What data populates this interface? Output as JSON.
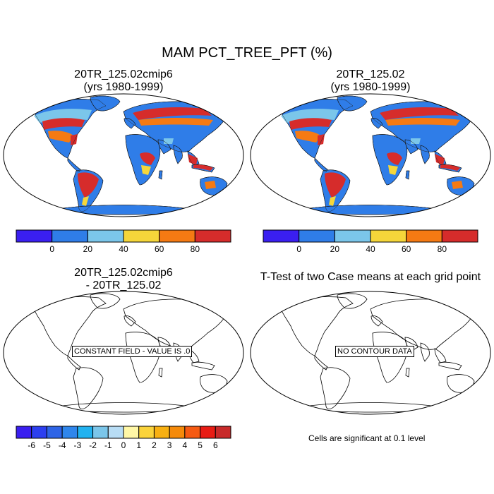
{
  "title": "MAM PCT_TREE_PFT (%)",
  "panels": {
    "top_left": {
      "title_line1": "20TR_125.02cmip6",
      "title_line2": "(yrs 1980-1999)"
    },
    "top_right": {
      "title_line1": "20TR_125.02",
      "title_line2": "(yrs 1980-1999)"
    },
    "bottom_left": {
      "title_line1": "20TR_125.02cmip6",
      "title_line2": "- 20TR_125.02",
      "label": "CONSTANT FIELD - VALUE IS .0"
    },
    "bottom_right": {
      "title_line1": "T-Test of two Case means at each grid point",
      "label": "NO CONTOUR DATA"
    }
  },
  "colorbar_pct": {
    "ticks": [
      "0",
      "20",
      "40",
      "60",
      "80"
    ],
    "colors": [
      "#3a1ff0",
      "#2f7de8",
      "#7bc6ea",
      "#f5d63a",
      "#f57a13",
      "#d62c2b"
    ]
  },
  "colorbar_diff": {
    "ticks": [
      "-6",
      "-5",
      "-4",
      "-3",
      "-2",
      "-1",
      "0",
      "1",
      "2",
      "3",
      "4",
      "5",
      "6"
    ],
    "colors": [
      "#3a1ff0",
      "#2c3ff0",
      "#2e64e6",
      "#2f86ec",
      "#22b2f0",
      "#7bc6ea",
      "#b8ddf5",
      "#fff7a6",
      "#fad33b",
      "#f8b012",
      "#f58a0a",
      "#f55a12",
      "#e81c14",
      "#c82a2a"
    ]
  },
  "note": "Cells are significant at 0.1 level"
}
